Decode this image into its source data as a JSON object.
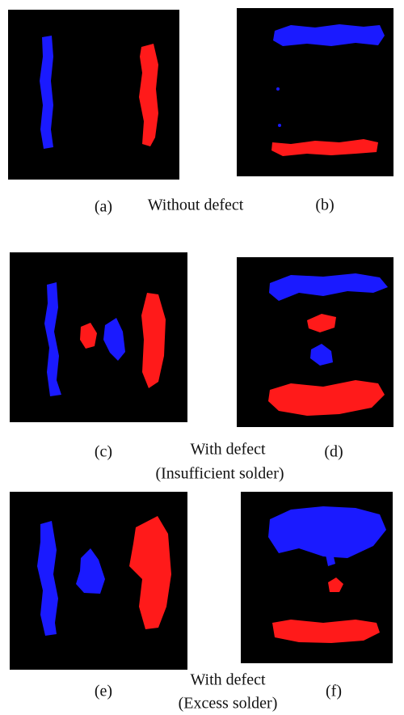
{
  "panels": [
    {
      "label": "(a)"
    },
    {
      "label": "(b)"
    },
    {
      "label": "(c)"
    },
    {
      "label": "(d)"
    },
    {
      "label": "(e)"
    },
    {
      "label": "(f)"
    }
  ],
  "captions": [
    {
      "lines": [
        "Without defect"
      ]
    },
    {
      "lines": [
        "With defect",
        "(Insufficient solder)"
      ]
    },
    {
      "lines": [
        "With defect",
        "(Excess solder)"
      ]
    }
  ]
}
